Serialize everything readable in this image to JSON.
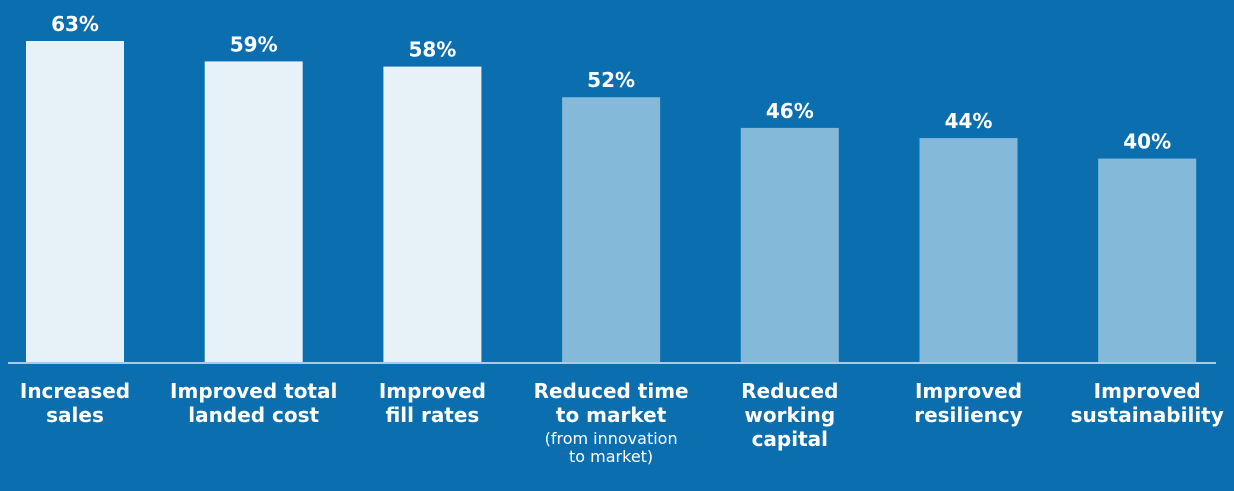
{
  "colors": {
    "background": "#0b6faf",
    "bar_light": "#e6f1f8",
    "bar_mid": "#85b9d9",
    "baseline": "#a9cbe3",
    "text": "#ffffff"
  },
  "chart_data": {
    "type": "bar",
    "categories": [
      "Increased sales",
      "Improved total landed cost",
      "Improved fill rates",
      "Reduced time to market",
      "Reduced working capital",
      "Improved resiliency",
      "Improved sustainability"
    ],
    "category_lines": [
      [
        "Increased",
        "sales"
      ],
      [
        "Improved total",
        "landed cost"
      ],
      [
        "Improved",
        "fill rates"
      ],
      [
        "Reduced time",
        "to market"
      ],
      [
        "Reduced",
        "working",
        "capital"
      ],
      [
        "Improved",
        "resiliency"
      ],
      [
        "Improved",
        "sustainability"
      ]
    ],
    "category_notes": [
      [],
      [],
      [],
      [
        "(from innovation",
        "to market)"
      ],
      [],
      [],
      []
    ],
    "values": [
      63,
      59,
      58,
      52,
      46,
      44,
      40
    ],
    "value_labels": [
      "63%",
      "59%",
      "58%",
      "52%",
      "46%",
      "44%",
      "40%"
    ],
    "bar_tone": [
      "light",
      "light",
      "light",
      "mid",
      "mid",
      "mid",
      "mid"
    ],
    "ylim": [
      0,
      63
    ],
    "grid": false,
    "title": "",
    "xlabel": "",
    "ylabel": ""
  }
}
